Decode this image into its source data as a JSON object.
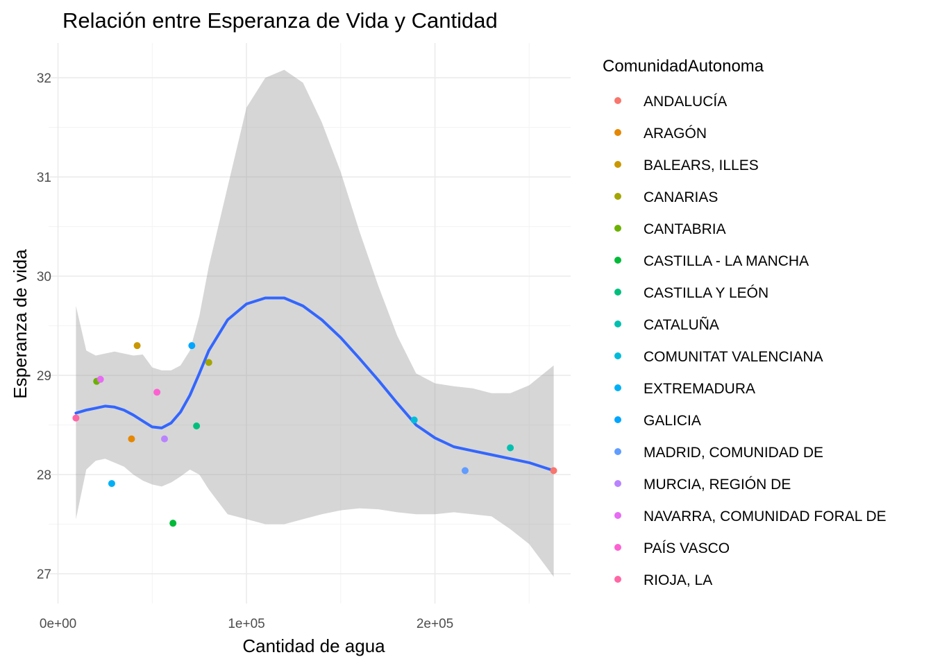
{
  "chart_data": {
    "type": "scatter",
    "title": "Relación entre Esperanza de Vida y Cantidad",
    "xlabel": "Cantidad de agua",
    "ylabel": "Esperanza de vida",
    "xlim": [
      -5000,
      272000
    ],
    "ylim": [
      26.7,
      32.35
    ],
    "x_ticks": [
      0,
      100000,
      200000
    ],
    "x_tick_labels": [
      "0e+00",
      "1e+05",
      "2e+05"
    ],
    "y_ticks": [
      27,
      28,
      29,
      30,
      31,
      32
    ],
    "y_tick_labels": [
      "27",
      "28",
      "29",
      "30",
      "31",
      "32"
    ],
    "grid": true,
    "legend": {
      "title": "ComunidadAutonoma",
      "position": "right"
    },
    "series": [
      {
        "name": "ANDALUCÍA",
        "color": "#F8766D",
        "points": [
          {
            "x": 263000,
            "y": 28.04
          }
        ]
      },
      {
        "name": "ARAGÓN",
        "color": "#E58700",
        "points": [
          {
            "x": 39000,
            "y": 28.36
          }
        ]
      },
      {
        "name": "BALEARS, ILLES",
        "color": "#C99800",
        "points": [
          {
            "x": 42000,
            "y": 29.3
          }
        ]
      },
      {
        "name": "CANARIAS",
        "color": "#A3A500",
        "points": [
          {
            "x": 80000,
            "y": 29.13
          }
        ]
      },
      {
        "name": "CANTABRIA",
        "color": "#6BB100",
        "points": [
          {
            "x": 20500,
            "y": 28.94
          }
        ]
      },
      {
        "name": "CASTILLA - LA MANCHA",
        "color": "#00BA38",
        "points": [
          {
            "x": 61000,
            "y": 27.51
          }
        ]
      },
      {
        "name": "CASTILLA Y LEÓN",
        "color": "#00BF7D",
        "points": [
          {
            "x": 73500,
            "y": 28.49
          }
        ]
      },
      {
        "name": "CATALUÑA",
        "color": "#00C0AF",
        "points": [
          {
            "x": 240000,
            "y": 28.27
          }
        ]
      },
      {
        "name": "COMUNITAT VALENCIANA",
        "color": "#00BCD8",
        "points": [
          {
            "x": 189000,
            "y": 28.55
          }
        ]
      },
      {
        "name": "EXTREMADURA",
        "color": "#00B0F6",
        "points": [
          {
            "x": 28500,
            "y": 27.91
          }
        ]
      },
      {
        "name": "GALICIA",
        "color": "#00A5FF",
        "points": [
          {
            "x": 71000,
            "y": 29.3
          }
        ]
      },
      {
        "name": "MADRID, COMUNIDAD DE",
        "color": "#619CFF",
        "points": [
          {
            "x": 216000,
            "y": 28.04
          }
        ]
      },
      {
        "name": "MURCIA, REGIÓN DE",
        "color": "#B983FF",
        "points": [
          {
            "x": 56500,
            "y": 28.36
          }
        ]
      },
      {
        "name": "NAVARRA, COMUNIDAD FORAL DE",
        "color": "#E76BF3",
        "points": [
          {
            "x": 22500,
            "y": 28.96
          }
        ]
      },
      {
        "name": "PAÍS VASCO",
        "color": "#FD61D1",
        "points": [
          {
            "x": 52500,
            "y": 28.83
          }
        ]
      },
      {
        "name": "RIOJA, LA",
        "color": "#FF67A4",
        "points": [
          {
            "x": 9500,
            "y": 28.57
          }
        ]
      }
    ],
    "smooth": {
      "color": "#3366FF",
      "band_color": "#999999",
      "x": [
        9500,
        15000,
        20000,
        25000,
        30000,
        35000,
        40000,
        45000,
        50000,
        55000,
        60000,
        65000,
        70000,
        75000,
        80000,
        90000,
        100000,
        110000,
        120000,
        130000,
        140000,
        150000,
        160000,
        170000,
        180000,
        190000,
        200000,
        210000,
        220000,
        230000,
        240000,
        250000,
        263000
      ],
      "y": [
        28.62,
        28.65,
        28.67,
        28.69,
        28.68,
        28.65,
        28.6,
        28.54,
        28.48,
        28.47,
        28.52,
        28.63,
        28.8,
        29.02,
        29.25,
        29.56,
        29.72,
        29.78,
        29.78,
        29.7,
        29.56,
        29.38,
        29.17,
        28.95,
        28.72,
        28.5,
        28.37,
        28.28,
        28.24,
        28.2,
        28.16,
        28.12,
        28.04
      ],
      "upper": [
        29.7,
        29.25,
        29.2,
        29.22,
        29.24,
        29.22,
        29.2,
        29.21,
        29.08,
        29.05,
        29.05,
        29.1,
        29.25,
        29.6,
        30.1,
        30.9,
        31.7,
        32.0,
        32.08,
        31.95,
        31.55,
        31.05,
        30.45,
        29.9,
        29.4,
        29.02,
        28.92,
        28.89,
        28.87,
        28.82,
        28.82,
        28.9,
        29.1
      ],
      "lower": [
        27.55,
        28.05,
        28.14,
        28.16,
        28.12,
        28.08,
        28.0,
        27.94,
        27.9,
        27.88,
        27.92,
        27.98,
        28.05,
        28.0,
        27.85,
        27.6,
        27.55,
        27.5,
        27.5,
        27.55,
        27.6,
        27.64,
        27.66,
        27.65,
        27.62,
        27.6,
        27.6,
        27.62,
        27.6,
        27.58,
        27.45,
        27.3,
        26.97
      ]
    }
  }
}
